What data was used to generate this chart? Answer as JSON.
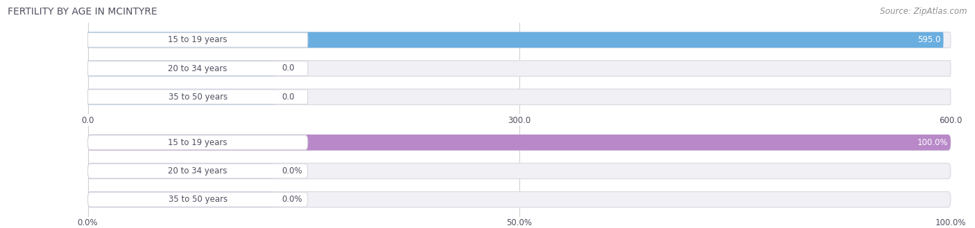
{
  "title": "FERTILITY BY AGE IN MCINTYRE",
  "source": "Source: ZipAtlas.com",
  "top_chart": {
    "categories": [
      "15 to 19 years",
      "20 to 34 years",
      "35 to 50 years"
    ],
    "values": [
      595.0,
      0.0,
      0.0
    ],
    "max_val": 600.0,
    "xlim": [
      0,
      600.0
    ],
    "xticks": [
      0.0,
      300.0,
      600.0
    ],
    "xticklabels": [
      "0.0",
      "300.0",
      "600.0"
    ],
    "bar_color": "#6aaee0",
    "bar_color_small": "#a8c4e8",
    "value_labels": [
      "595.0",
      "0.0",
      "0.0"
    ]
  },
  "bottom_chart": {
    "categories": [
      "15 to 19 years",
      "20 to 34 years",
      "35 to 50 years"
    ],
    "values": [
      100.0,
      0.0,
      0.0
    ],
    "max_val": 100.0,
    "xlim": [
      0,
      100.0
    ],
    "xticks": [
      0.0,
      50.0,
      100.0
    ],
    "xticklabels": [
      "0.0%",
      "50.0%",
      "100.0%"
    ],
    "bar_color": "#b888c8",
    "bar_color_small": "#cdb0d8",
    "value_labels": [
      "100.0%",
      "0.0%",
      "0.0%"
    ]
  },
  "bg_color": "#ffffff",
  "bar_bg_color": "#f0f0f5",
  "bar_border_color": "#d8d8e0",
  "label_color": "#505060",
  "title_color": "#505060",
  "source_color": "#909090",
  "label_pill_color": "#ffffff",
  "bar_height": 0.55,
  "title_fontsize": 10,
  "label_fontsize": 8.5,
  "tick_fontsize": 8.5,
  "source_fontsize": 8.5
}
